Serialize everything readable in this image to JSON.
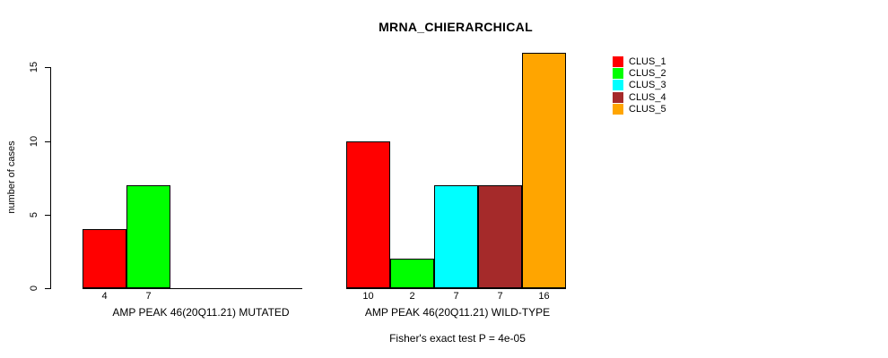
{
  "chart_data": {
    "type": "bar",
    "title": "MRNA_CHIERARCHICAL",
    "ylabel": "number of cases",
    "xlabel": "",
    "ylim": [
      0,
      16
    ],
    "yticks": [
      0,
      5,
      10,
      15
    ],
    "grid": false,
    "legend_position": "top-right",
    "footnote": "Fisher's exact test P = 4e-05",
    "groups": [
      {
        "label": "AMP PEAK 46(20Q11.21) MUTATED",
        "bars": [
          {
            "series": "CLUS_1",
            "value": 4,
            "color": "#FF0000"
          },
          {
            "series": "CLUS_2",
            "value": 7,
            "color": "#00FF00"
          }
        ]
      },
      {
        "label": "AMP PEAK 46(20Q11.21) WILD-TYPE",
        "bars": [
          {
            "series": "CLUS_1",
            "value": 10,
            "color": "#FF0000"
          },
          {
            "series": "CLUS_2",
            "value": 2,
            "color": "#00FF00"
          },
          {
            "series": "CLUS_3",
            "value": 7,
            "color": "#00FFFF"
          },
          {
            "series": "CLUS_4",
            "value": 7,
            "color": "#A52A2A"
          },
          {
            "series": "CLUS_5",
            "value": 16,
            "color": "#FFA500"
          }
        ]
      }
    ],
    "legend": [
      {
        "label": "CLUS_1",
        "color": "#FF0000"
      },
      {
        "label": "CLUS_2",
        "color": "#00FF00"
      },
      {
        "label": "CLUS_3",
        "color": "#00FFFF"
      },
      {
        "label": "CLUS_4",
        "color": "#A52A2A"
      },
      {
        "label": "CLUS_5",
        "color": "#FFA500"
      }
    ]
  }
}
